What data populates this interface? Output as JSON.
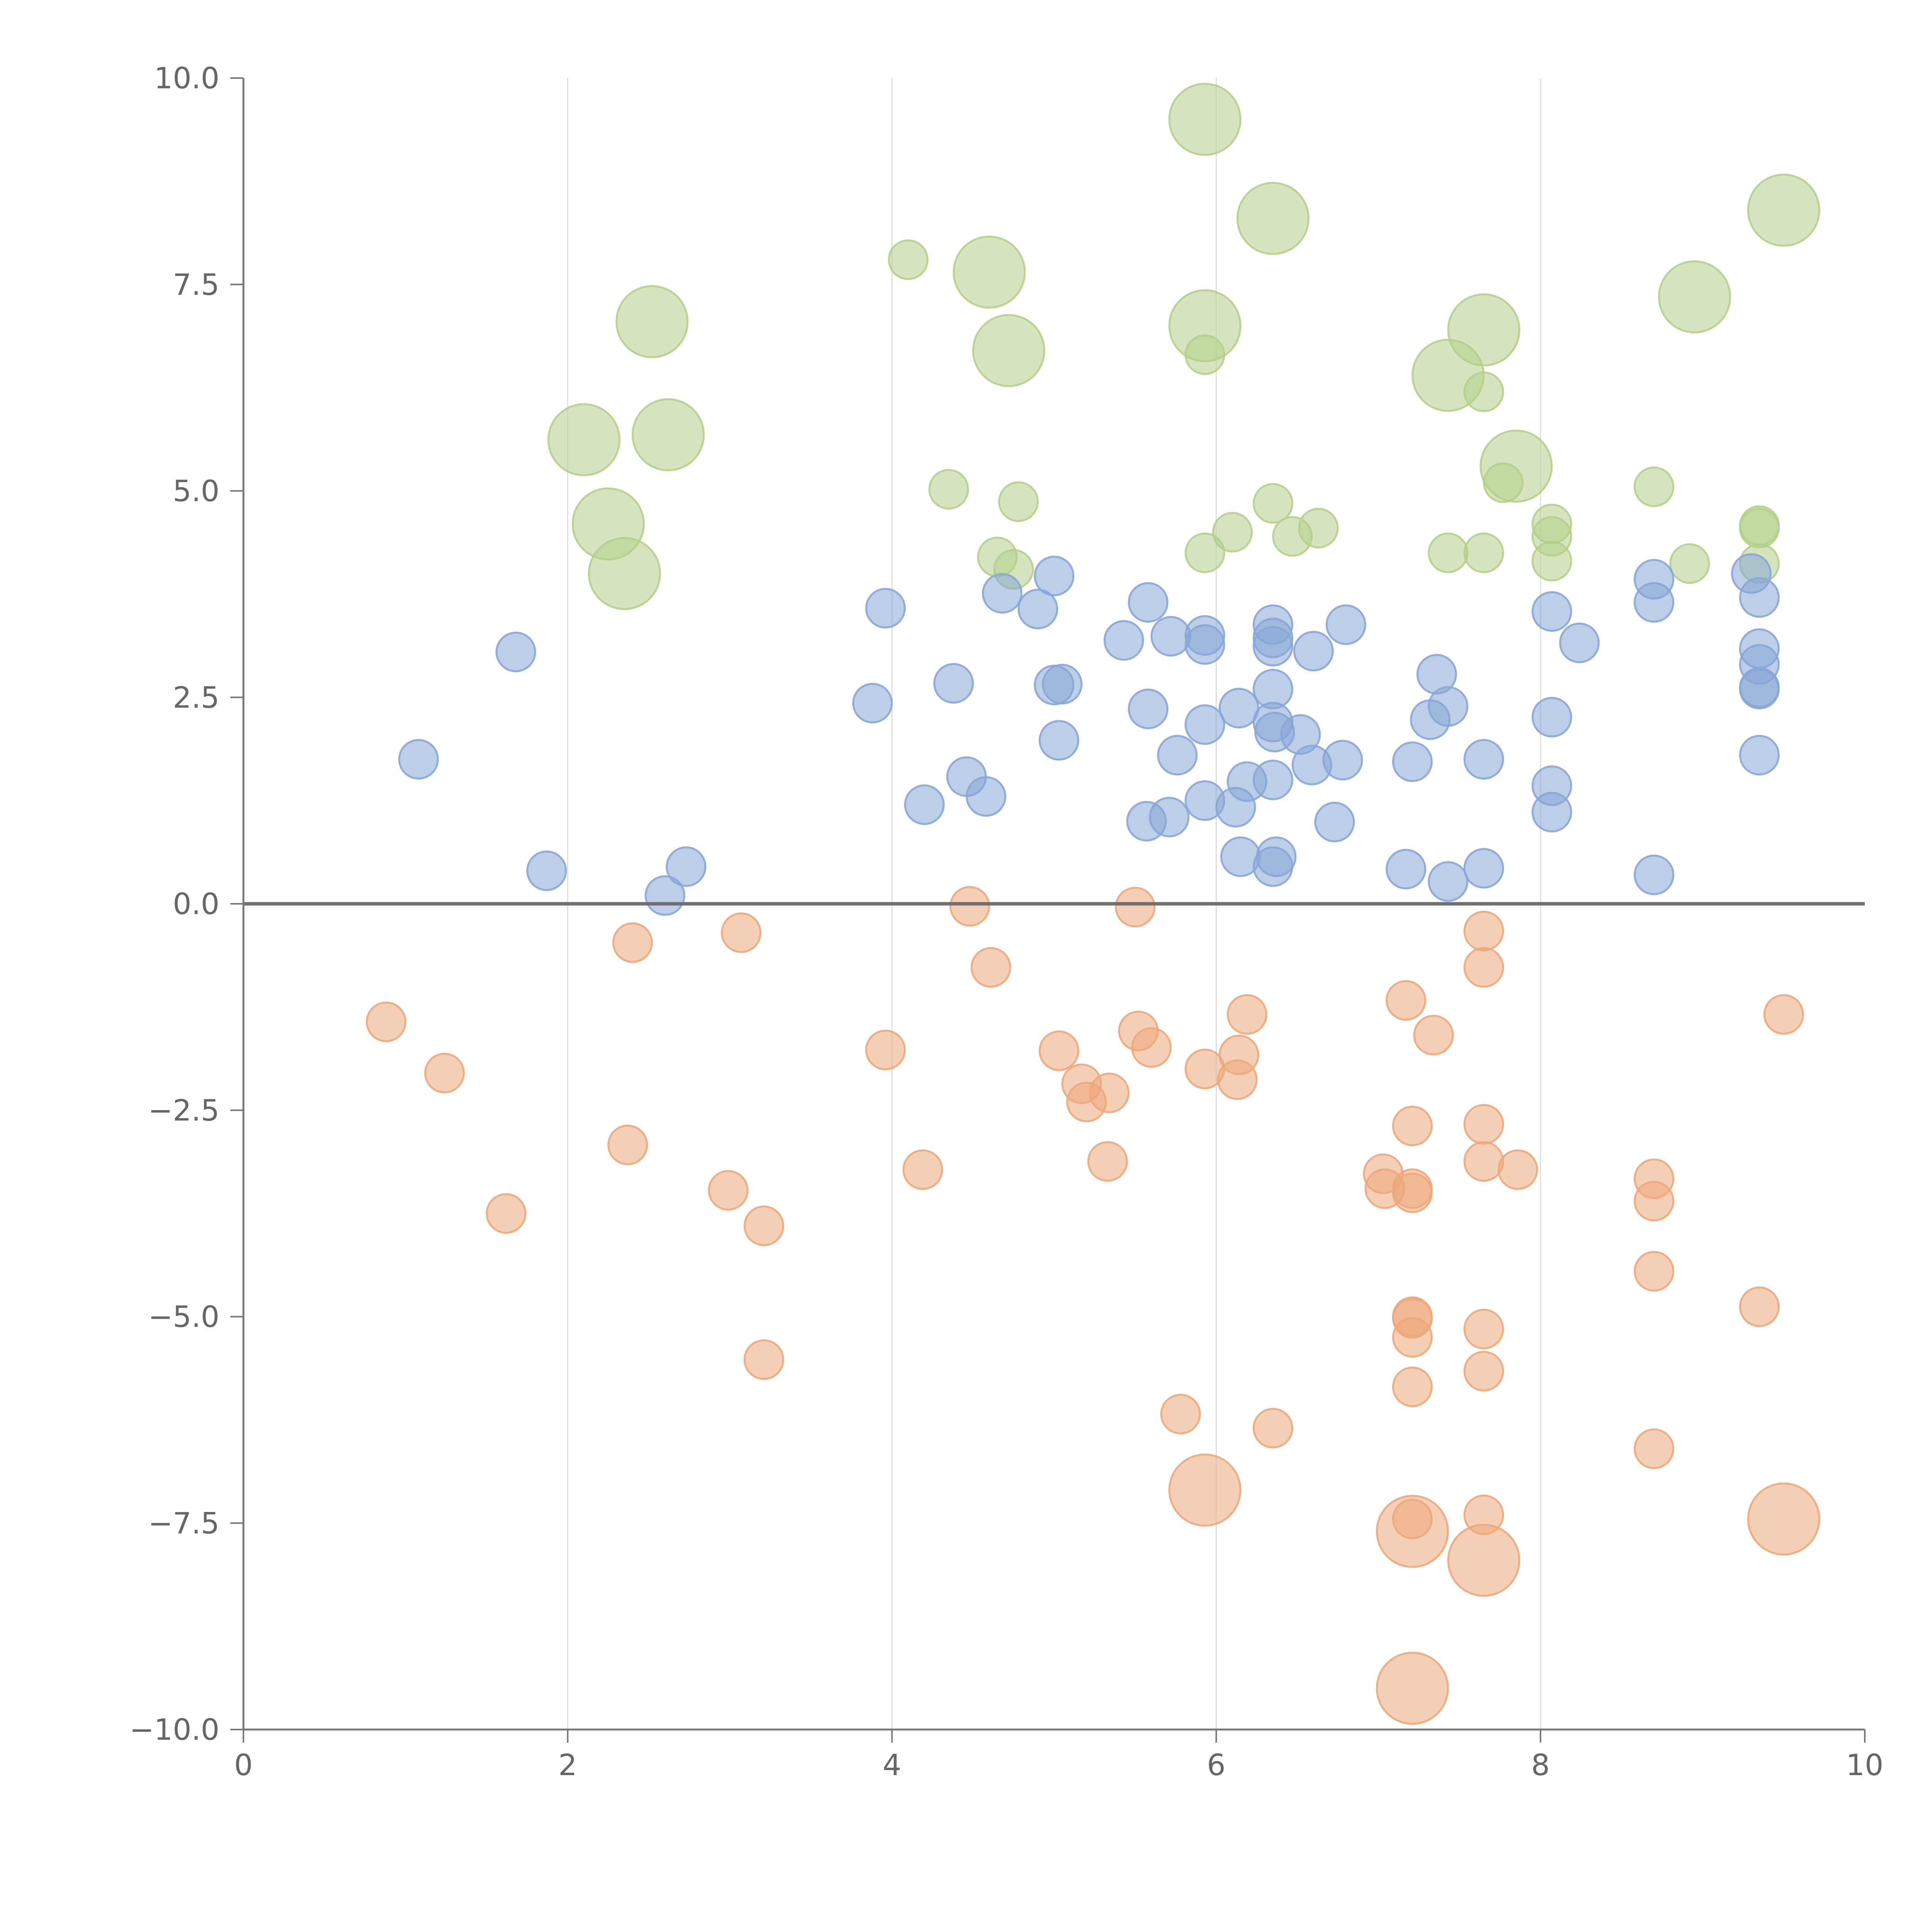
{
  "chart_data": {
    "type": "scatter",
    "title": "",
    "xlabel": "",
    "ylabel": "",
    "xlim": [
      0,
      10
    ],
    "ylim": [
      -10,
      10
    ],
    "x_ticks": [
      0,
      2,
      4,
      6,
      8,
      10
    ],
    "y_ticks": [
      -10,
      -7.5,
      -5,
      -2.5,
      0,
      2.5,
      5,
      7.5,
      10
    ],
    "x_tick_labels": [
      "0",
      "2",
      "4",
      "6",
      "8",
      "10"
    ],
    "y_tick_labels": [
      "−10.0",
      "−7.5",
      "−5.0",
      "−2.5",
      "0.0",
      "2.5",
      "5.0",
      "7.5",
      "10.0"
    ],
    "grid": "vertical",
    "reference_line_y": 0,
    "colors": {
      "green": "#b5cf8a",
      "blue": "#87a6d6",
      "orange": "#eca87a"
    },
    "series": [
      {
        "color": "green",
        "points": [
          {
            "x": 5.93,
            "y": 9.5,
            "size": 3
          },
          {
            "x": 6.35,
            "y": 8.3,
            "size": 3
          },
          {
            "x": 9.5,
            "y": 8.4,
            "size": 3
          },
          {
            "x": 4.1,
            "y": 7.8,
            "size": 1
          },
          {
            "x": 4.6,
            "y": 7.65,
            "size": 3
          },
          {
            "x": 2.52,
            "y": 7.05,
            "size": 3
          },
          {
            "x": 4.72,
            "y": 6.7,
            "size": 3
          },
          {
            "x": 5.93,
            "y": 7.0,
            "size": 3
          },
          {
            "x": 5.93,
            "y": 6.65,
            "size": 1
          },
          {
            "x": 7.65,
            "y": 6.95,
            "size": 3
          },
          {
            "x": 7.43,
            "y": 6.4,
            "size": 3
          },
          {
            "x": 7.65,
            "y": 6.2,
            "size": 1
          },
          {
            "x": 8.95,
            "y": 7.35,
            "size": 3
          },
          {
            "x": 2.1,
            "y": 5.62,
            "size": 3
          },
          {
            "x": 2.62,
            "y": 5.68,
            "size": 3
          },
          {
            "x": 2.25,
            "y": 4.6,
            "size": 3
          },
          {
            "x": 2.35,
            "y": 4.0,
            "size": 3
          },
          {
            "x": 4.35,
            "y": 5.02,
            "size": 1
          },
          {
            "x": 4.78,
            "y": 4.87,
            "size": 1
          },
          {
            "x": 4.65,
            "y": 4.2,
            "size": 1
          },
          {
            "x": 4.75,
            "y": 4.05,
            "size": 1
          },
          {
            "x": 5.93,
            "y": 4.25,
            "size": 1
          },
          {
            "x": 6.1,
            "y": 4.5,
            "size": 1
          },
          {
            "x": 6.35,
            "y": 4.85,
            "size": 1
          },
          {
            "x": 6.47,
            "y": 4.45,
            "size": 1
          },
          {
            "x": 6.63,
            "y": 4.55,
            "size": 1
          },
          {
            "x": 7.43,
            "y": 4.25,
            "size": 1
          },
          {
            "x": 7.65,
            "y": 4.25,
            "size": 1
          },
          {
            "x": 7.85,
            "y": 5.3,
            "size": 3
          },
          {
            "x": 7.77,
            "y": 5.1,
            "size": 1
          },
          {
            "x": 8.07,
            "y": 4.6,
            "size": 1
          },
          {
            "x": 8.07,
            "y": 4.45,
            "size": 1
          },
          {
            "x": 8.07,
            "y": 4.15,
            "size": 1
          },
          {
            "x": 8.7,
            "y": 5.05,
            "size": 1
          },
          {
            "x": 8.92,
            "y": 4.12,
            "size": 1
          },
          {
            "x": 9.35,
            "y": 4.58,
            "size": 1
          },
          {
            "x": 9.35,
            "y": 4.55,
            "size": 1
          },
          {
            "x": 9.35,
            "y": 4.12,
            "size": 1
          }
        ]
      },
      {
        "color": "blue",
        "points": [
          {
            "x": 1.68,
            "y": 3.05,
            "size": 1
          },
          {
            "x": 1.08,
            "y": 1.75,
            "size": 1
          },
          {
            "x": 1.87,
            "y": 0.4,
            "size": 1
          },
          {
            "x": 2.6,
            "y": 0.1,
            "size": 1
          },
          {
            "x": 2.73,
            "y": 0.45,
            "size": 1
          },
          {
            "x": 3.96,
            "y": 3.58,
            "size": 1
          },
          {
            "x": 3.88,
            "y": 2.43,
            "size": 1
          },
          {
            "x": 4.2,
            "y": 1.2,
            "size": 1
          },
          {
            "x": 4.38,
            "y": 2.67,
            "size": 1
          },
          {
            "x": 4.46,
            "y": 1.54,
            "size": 1
          },
          {
            "x": 4.58,
            "y": 1.3,
            "size": 1
          },
          {
            "x": 4.68,
            "y": 3.76,
            "size": 1
          },
          {
            "x": 4.9,
            "y": 3.57,
            "size": 1
          },
          {
            "x": 5.0,
            "y": 3.97,
            "size": 1
          },
          {
            "x": 5.0,
            "y": 2.65,
            "size": 1
          },
          {
            "x": 5.05,
            "y": 2.66,
            "size": 1
          },
          {
            "x": 5.03,
            "y": 1.98,
            "size": 1
          },
          {
            "x": 5.43,
            "y": 3.19,
            "size": 1
          },
          {
            "x": 5.58,
            "y": 3.65,
            "size": 1
          },
          {
            "x": 5.58,
            "y": 2.36,
            "size": 1
          },
          {
            "x": 5.57,
            "y": 1.0,
            "size": 1
          },
          {
            "x": 5.72,
            "y": 3.24,
            "size": 1
          },
          {
            "x": 5.76,
            "y": 1.8,
            "size": 1
          },
          {
            "x": 5.71,
            "y": 1.05,
            "size": 1
          },
          {
            "x": 5.93,
            "y": 3.25,
            "size": 1
          },
          {
            "x": 5.93,
            "y": 3.14,
            "size": 1
          },
          {
            "x": 5.93,
            "y": 2.17,
            "size": 1
          },
          {
            "x": 5.93,
            "y": 1.25,
            "size": 1
          },
          {
            "x": 6.14,
            "y": 2.37,
            "size": 1
          },
          {
            "x": 6.12,
            "y": 1.17,
            "size": 1
          },
          {
            "x": 6.15,
            "y": 0.57,
            "size": 1
          },
          {
            "x": 6.19,
            "y": 1.48,
            "size": 1
          },
          {
            "x": 6.35,
            "y": 3.38,
            "size": 1
          },
          {
            "x": 6.35,
            "y": 3.22,
            "size": 1
          },
          {
            "x": 6.35,
            "y": 3.12,
            "size": 1
          },
          {
            "x": 6.35,
            "y": 2.6,
            "size": 1
          },
          {
            "x": 6.35,
            "y": 2.2,
            "size": 1
          },
          {
            "x": 6.36,
            "y": 2.08,
            "size": 1
          },
          {
            "x": 6.35,
            "y": 1.5,
            "size": 1
          },
          {
            "x": 6.37,
            "y": 0.57,
            "size": 1
          },
          {
            "x": 6.35,
            "y": 0.45,
            "size": 1
          },
          {
            "x": 6.52,
            "y": 2.05,
            "size": 1
          },
          {
            "x": 6.6,
            "y": 3.06,
            "size": 1
          },
          {
            "x": 6.59,
            "y": 1.68,
            "size": 1
          },
          {
            "x": 6.73,
            "y": 0.99,
            "size": 1
          },
          {
            "x": 6.8,
            "y": 3.38,
            "size": 1
          },
          {
            "x": 6.78,
            "y": 1.74,
            "size": 1
          },
          {
            "x": 7.17,
            "y": 0.42,
            "size": 1
          },
          {
            "x": 7.21,
            "y": 1.72,
            "size": 1
          },
          {
            "x": 7.32,
            "y": 2.23,
            "size": 1
          },
          {
            "x": 7.36,
            "y": 2.78,
            "size": 1
          },
          {
            "x": 7.43,
            "y": 2.39,
            "size": 1
          },
          {
            "x": 7.43,
            "y": 0.27,
            "size": 1
          },
          {
            "x": 7.65,
            "y": 1.75,
            "size": 1
          },
          {
            "x": 7.65,
            "y": 0.43,
            "size": 1
          },
          {
            "x": 8.07,
            "y": 3.54,
            "size": 1
          },
          {
            "x": 8.07,
            "y": 2.26,
            "size": 1
          },
          {
            "x": 8.07,
            "y": 1.43,
            "size": 1
          },
          {
            "x": 8.07,
            "y": 1.11,
            "size": 1
          },
          {
            "x": 8.24,
            "y": 3.16,
            "size": 1
          },
          {
            "x": 8.7,
            "y": 3.93,
            "size": 1
          },
          {
            "x": 8.7,
            "y": 3.65,
            "size": 1
          },
          {
            "x": 8.7,
            "y": 0.35,
            "size": 1
          },
          {
            "x": 9.3,
            "y": 4.0,
            "size": 1
          },
          {
            "x": 9.35,
            "y": 3.71,
            "size": 1
          },
          {
            "x": 9.35,
            "y": 3.09,
            "size": 1
          },
          {
            "x": 9.35,
            "y": 2.9,
            "size": 1
          },
          {
            "x": 9.35,
            "y": 2.62,
            "size": 1
          },
          {
            "x": 9.35,
            "y": 2.6,
            "size": 1
          },
          {
            "x": 9.35,
            "y": 1.8,
            "size": 1
          }
        ]
      },
      {
        "color": "orange",
        "points": [
          {
            "x": 0.88,
            "y": -1.43,
            "size": 1
          },
          {
            "x": 1.24,
            "y": -2.05,
            "size": 1
          },
          {
            "x": 1.62,
            "y": -3.75,
            "size": 1
          },
          {
            "x": 2.4,
            "y": -0.47,
            "size": 1
          },
          {
            "x": 2.37,
            "y": -2.92,
            "size": 1
          },
          {
            "x": 2.99,
            "y": -3.47,
            "size": 1
          },
          {
            "x": 3.07,
            "y": -0.35,
            "size": 1
          },
          {
            "x": 3.21,
            "y": -3.9,
            "size": 1
          },
          {
            "x": 3.21,
            "y": -5.52,
            "size": 1
          },
          {
            "x": 3.96,
            "y": -1.77,
            "size": 1
          },
          {
            "x": 4.19,
            "y": -3.22,
            "size": 1
          },
          {
            "x": 4.48,
            "y": -0.03,
            "size": 1
          },
          {
            "x": 4.61,
            "y": -0.77,
            "size": 1
          },
          {
            "x": 5.03,
            "y": -1.78,
            "size": 1
          },
          {
            "x": 5.17,
            "y": -2.18,
            "size": 1
          },
          {
            "x": 5.2,
            "y": -2.4,
            "size": 1
          },
          {
            "x": 5.34,
            "y": -2.29,
            "size": 1
          },
          {
            "x": 5.33,
            "y": -3.12,
            "size": 1
          },
          {
            "x": 5.5,
            "y": -0.04,
            "size": 1
          },
          {
            "x": 5.52,
            "y": -1.54,
            "size": 1
          },
          {
            "x": 5.6,
            "y": -1.74,
            "size": 1
          },
          {
            "x": 5.78,
            "y": -6.18,
            "size": 1
          },
          {
            "x": 5.93,
            "y": -2.0,
            "size": 1
          },
          {
            "x": 5.93,
            "y": -7.1,
            "size": 3
          },
          {
            "x": 6.13,
            "y": -2.13,
            "size": 1
          },
          {
            "x": 6.14,
            "y": -1.83,
            "size": 1
          },
          {
            "x": 6.19,
            "y": -1.34,
            "size": 1
          },
          {
            "x": 6.35,
            "y": -6.35,
            "size": 1
          },
          {
            "x": 7.03,
            "y": -3.27,
            "size": 1
          },
          {
            "x": 7.04,
            "y": -3.45,
            "size": 1
          },
          {
            "x": 7.17,
            "y": -1.17,
            "size": 1
          },
          {
            "x": 7.21,
            "y": -2.69,
            "size": 1
          },
          {
            "x": 7.21,
            "y": -3.45,
            "size": 1
          },
          {
            "x": 7.21,
            "y": -3.5,
            "size": 1
          },
          {
            "x": 7.21,
            "y": -5.0,
            "size": 1
          },
          {
            "x": 7.21,
            "y": -5.02,
            "size": 1
          },
          {
            "x": 7.21,
            "y": -5.25,
            "size": 1
          },
          {
            "x": 7.21,
            "y": -5.85,
            "size": 1
          },
          {
            "x": 7.21,
            "y": -7.45,
            "size": 1
          },
          {
            "x": 7.21,
            "y": -7.6,
            "size": 3
          },
          {
            "x": 7.21,
            "y": -9.5,
            "size": 3
          },
          {
            "x": 7.34,
            "y": -1.59,
            "size": 1
          },
          {
            "x": 7.65,
            "y": -0.33,
            "size": 1
          },
          {
            "x": 7.65,
            "y": -0.77,
            "size": 1
          },
          {
            "x": 7.65,
            "y": -2.67,
            "size": 1
          },
          {
            "x": 7.65,
            "y": -3.12,
            "size": 1
          },
          {
            "x": 7.65,
            "y": -5.15,
            "size": 1
          },
          {
            "x": 7.65,
            "y": -5.66,
            "size": 1
          },
          {
            "x": 7.65,
            "y": -7.4,
            "size": 1
          },
          {
            "x": 7.65,
            "y": -7.95,
            "size": 3
          },
          {
            "x": 7.86,
            "y": -3.22,
            "size": 1
          },
          {
            "x": 8.7,
            "y": -3.33,
            "size": 1
          },
          {
            "x": 8.7,
            "y": -3.6,
            "size": 1
          },
          {
            "x": 8.7,
            "y": -4.45,
            "size": 1
          },
          {
            "x": 8.7,
            "y": -6.6,
            "size": 1
          },
          {
            "x": 9.35,
            "y": -4.88,
            "size": 1
          },
          {
            "x": 9.5,
            "y": -1.34,
            "size": 1
          },
          {
            "x": 9.5,
            "y": -7.45,
            "size": 3
          }
        ]
      }
    ]
  }
}
